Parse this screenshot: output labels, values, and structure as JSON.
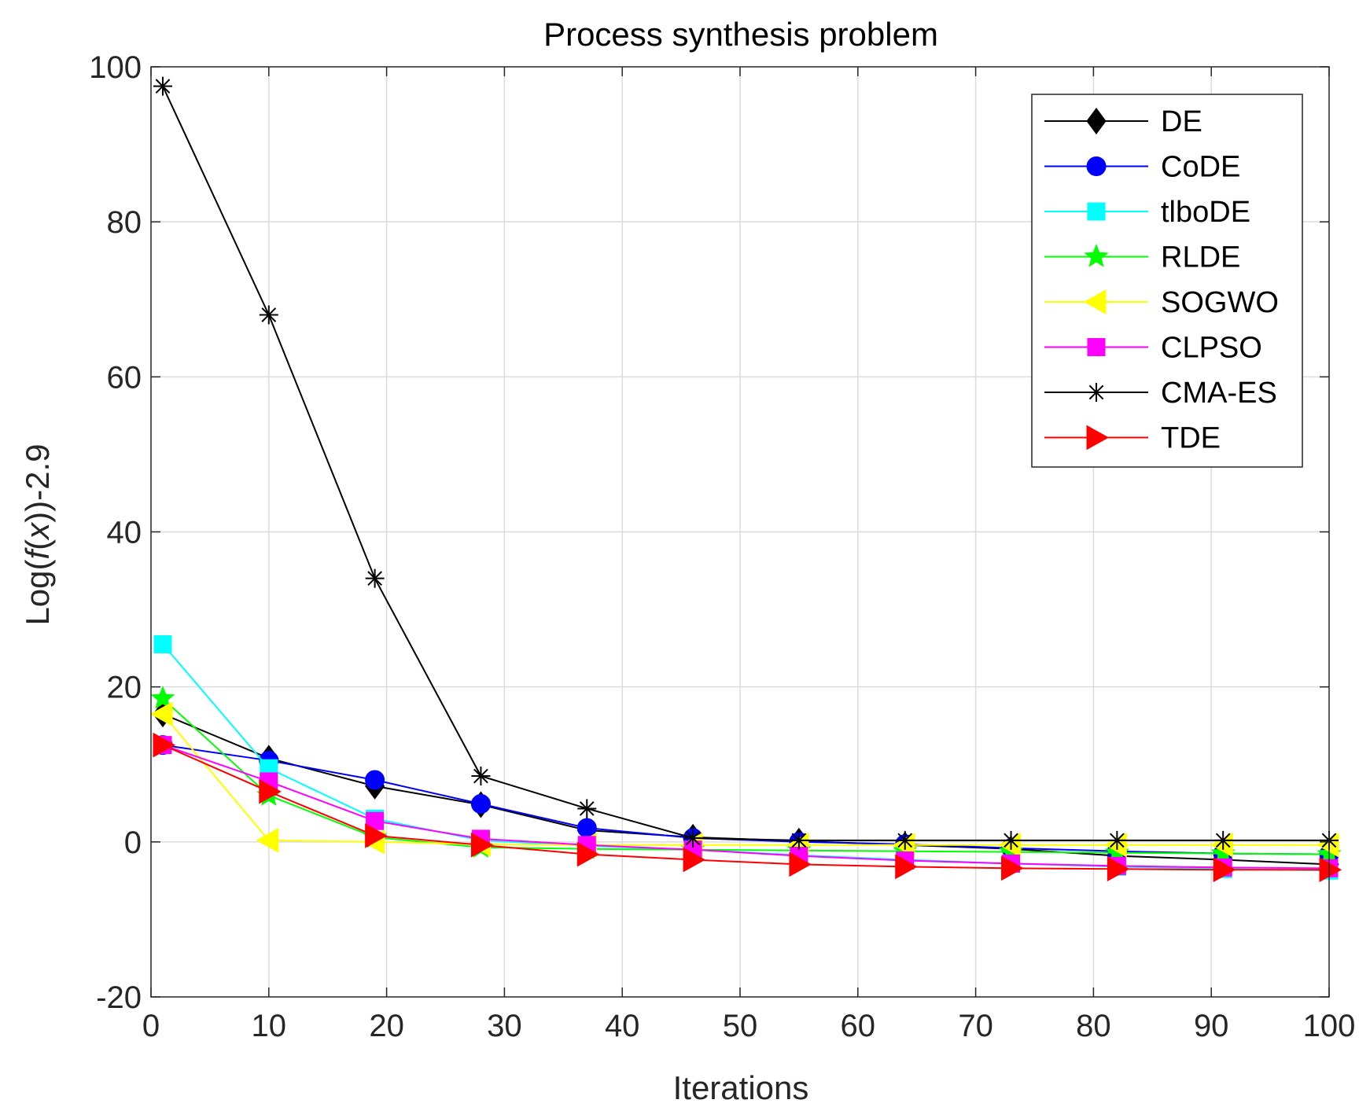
{
  "chart_data": {
    "type": "line",
    "title": "Process synthesis problem",
    "xlabel": "Iterations",
    "ylabel": "Log(f(x))-2.9",
    "ylabel_parts": {
      "prefix": "Log(",
      "fn": "f",
      "paren_open": "(",
      "var": "x",
      "suffix": "))-2.9"
    },
    "xlim": [
      0,
      100
    ],
    "ylim": [
      -20,
      100
    ],
    "xticks": [
      0,
      10,
      20,
      30,
      40,
      50,
      60,
      70,
      80,
      90,
      100
    ],
    "yticks": [
      -20,
      0,
      20,
      40,
      60,
      80,
      100
    ],
    "grid": true,
    "legend_position": "top-right",
    "x": [
      1,
      10,
      19,
      28,
      37,
      46,
      55,
      64,
      73,
      82,
      91,
      100
    ],
    "series": [
      {
        "name": "DE",
        "color": "#000000",
        "marker": "diamond",
        "values": [
          16.5,
          10.8,
          7.2,
          4.8,
          1.5,
          0.6,
          0.1,
          -0.4,
          -0.9,
          -1.8,
          -2.3,
          -2.9
        ]
      },
      {
        "name": "CoDE",
        "color": "#0000FF",
        "marker": "circle",
        "values": [
          12.5,
          10.5,
          8.0,
          4.9,
          1.8,
          0.5,
          0.0,
          -0.3,
          -0.8,
          -1.2,
          -1.5,
          -1.6
        ]
      },
      {
        "name": "tlboDE",
        "color": "#00FFFF",
        "marker": "square",
        "values": [
          25.5,
          9.5,
          3.0,
          0.2,
          -0.5,
          -1.0,
          -1.7,
          -2.3,
          -2.8,
          -3.2,
          -3.5,
          -3.7
        ]
      },
      {
        "name": "RLDE",
        "color": "#00FF00",
        "marker": "star",
        "values": [
          18.5,
          6.0,
          0.6,
          -0.7,
          -0.9,
          -1.0,
          -1.1,
          -1.2,
          -1.3,
          -1.4,
          -1.5,
          -1.6
        ]
      },
      {
        "name": "SOGWO",
        "color": "#FFFF00",
        "marker": "triangle-left",
        "values": [
          16.5,
          0.2,
          0.0,
          -0.3,
          -0.4,
          -0.4,
          -0.4,
          -0.4,
          -0.4,
          -0.4,
          -0.4,
          -0.4
        ]
      },
      {
        "name": "CLPSO",
        "color": "#FF00FF",
        "marker": "square",
        "values": [
          12.5,
          7.8,
          2.7,
          0.4,
          -0.4,
          -1.0,
          -1.8,
          -2.4,
          -2.8,
          -3.1,
          -3.3,
          -3.4
        ]
      },
      {
        "name": "CMA-ES",
        "color": "#000000",
        "marker": "asterisk",
        "values": [
          97.5,
          68.0,
          34.0,
          8.5,
          4.3,
          0.5,
          0.2,
          0.2,
          0.2,
          0.2,
          0.2,
          0.2
        ]
      },
      {
        "name": "TDE",
        "color": "#FF0000",
        "marker": "triangle-right",
        "values": [
          12.5,
          6.5,
          0.8,
          -0.4,
          -1.6,
          -2.3,
          -2.9,
          -3.2,
          -3.4,
          -3.5,
          -3.6,
          -3.6
        ]
      }
    ]
  }
}
